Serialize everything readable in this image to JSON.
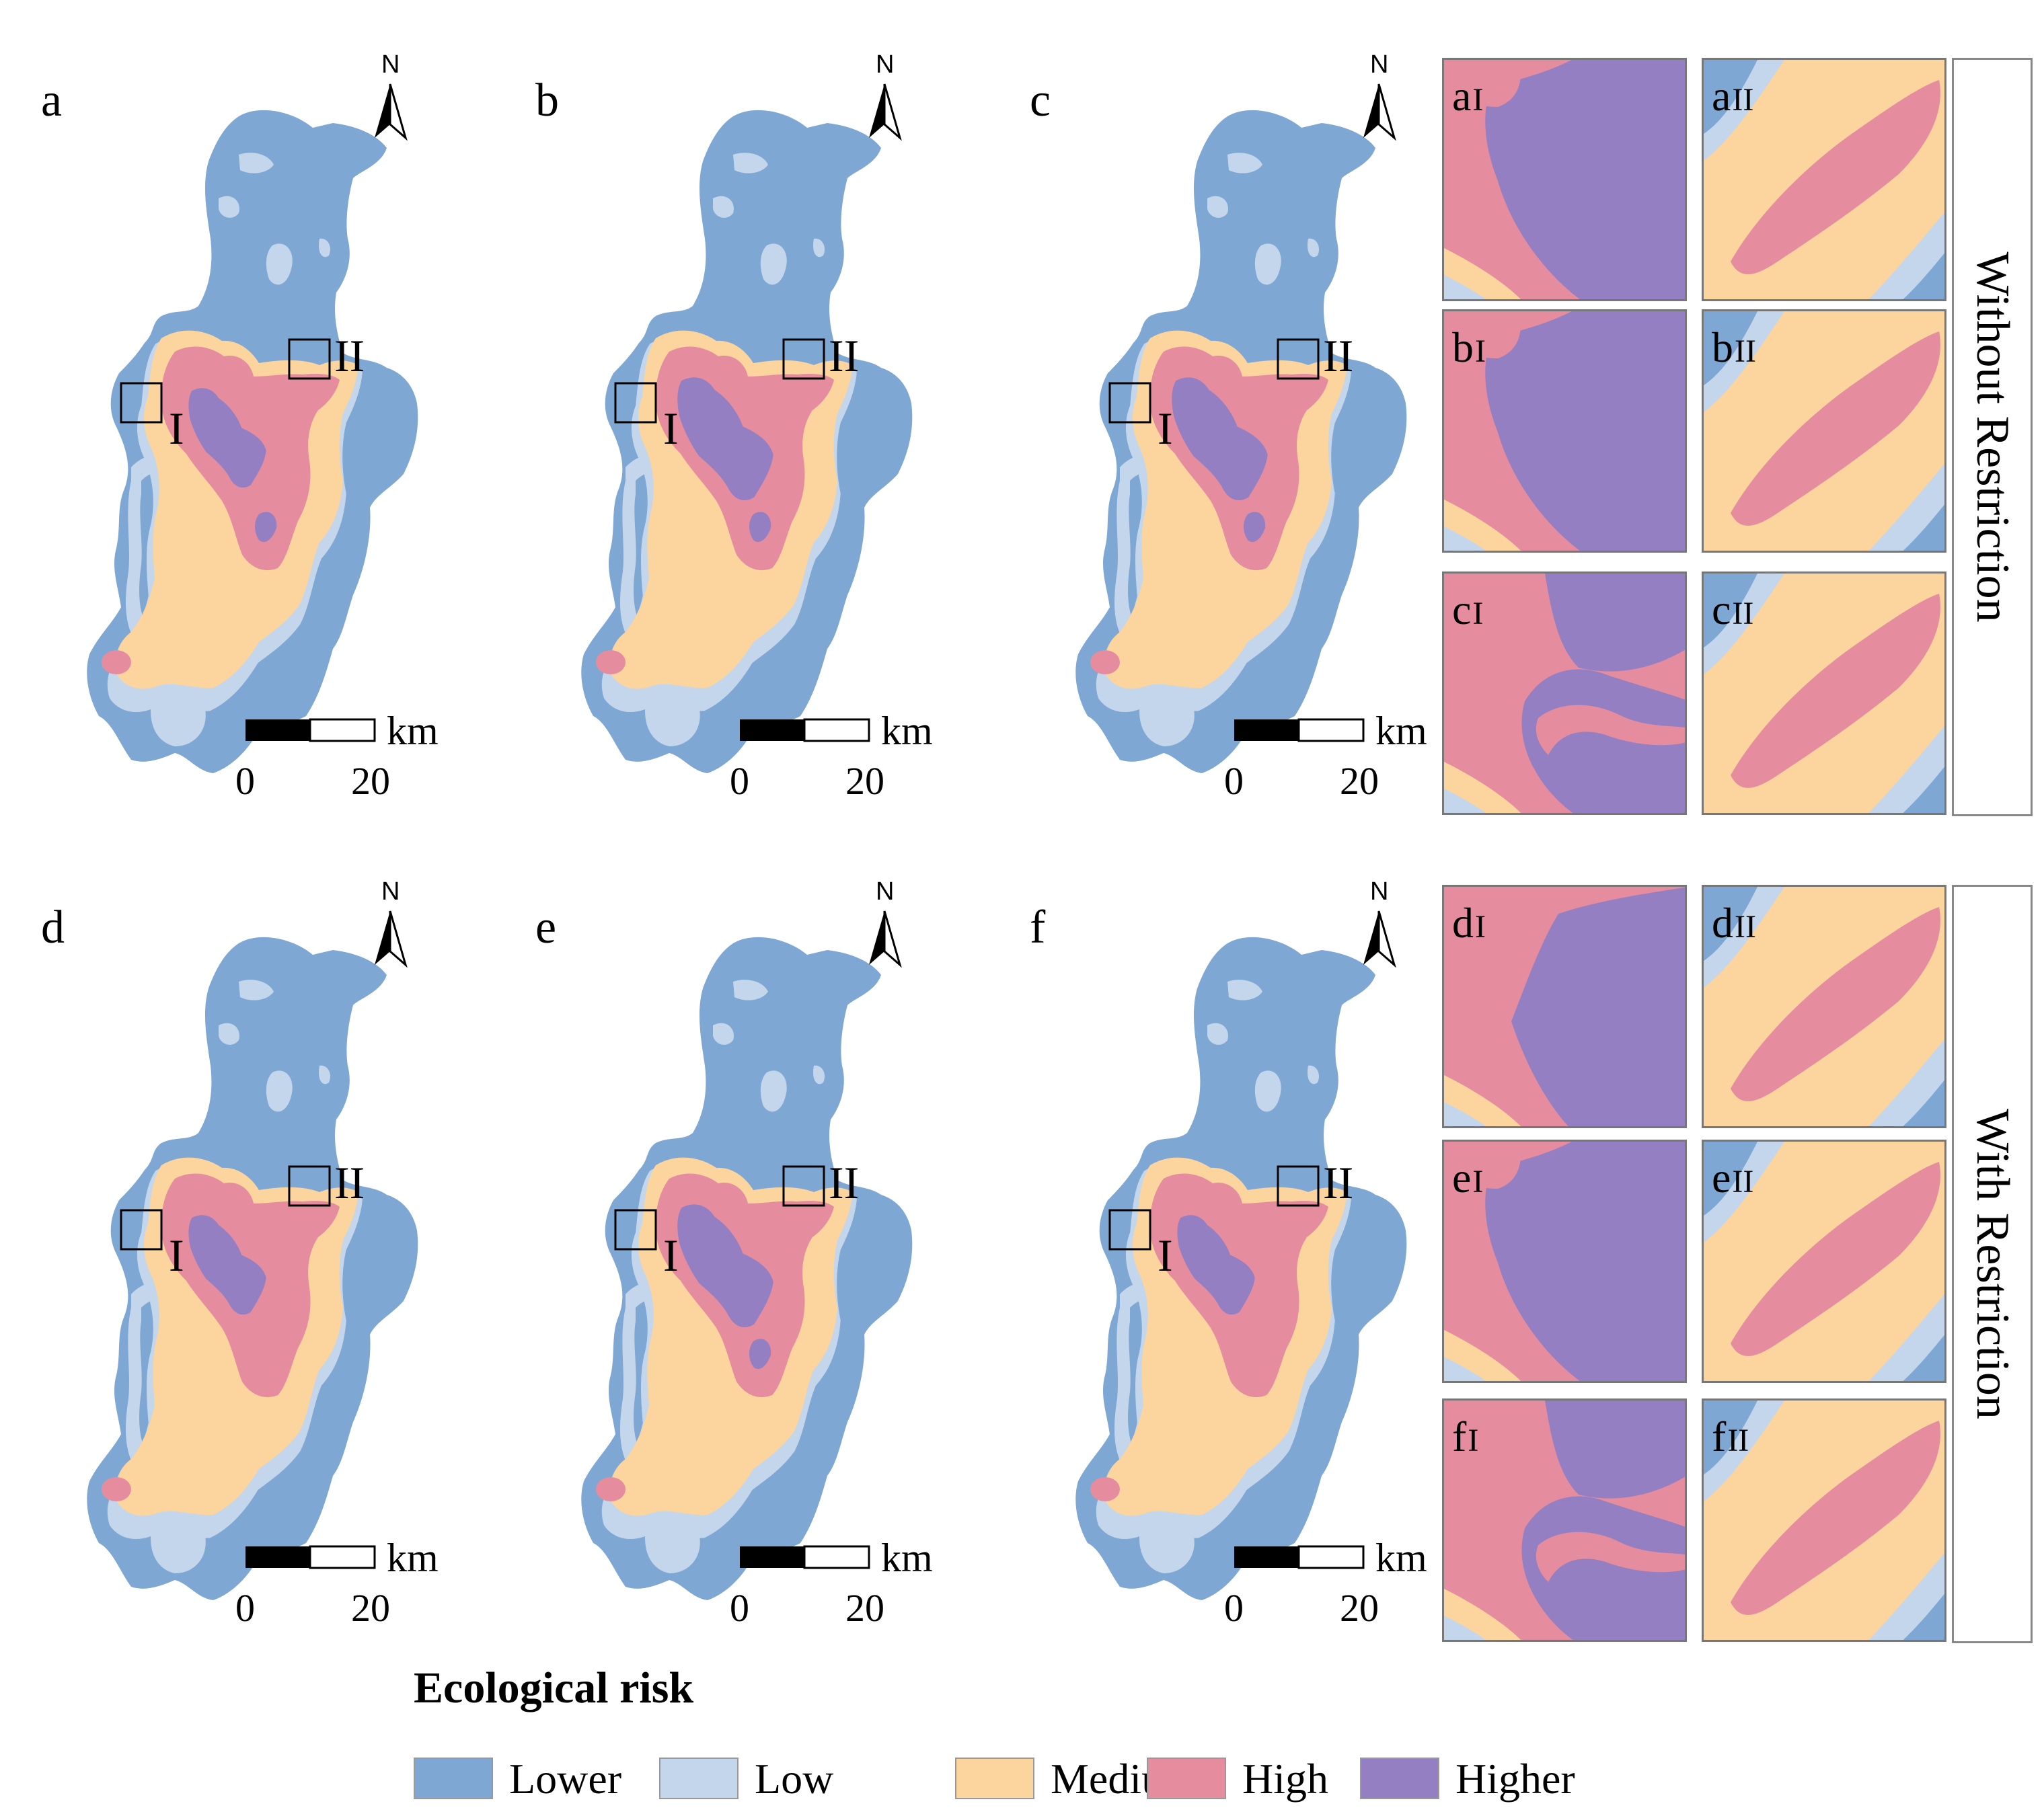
{
  "colors": {
    "lower": "#7fa7d3",
    "low": "#c4d6ec",
    "medium": "#fbd49e",
    "high": "#e58d9e",
    "higher": "#947fc2"
  },
  "north_label": "N",
  "north_icon": "north-arrow-icon",
  "scale": {
    "unit": "km",
    "ticks": [
      "0",
      "20"
    ]
  },
  "box_labels": {
    "one": "I",
    "two": "II"
  },
  "panels": [
    {
      "id": "a",
      "label": "a",
      "restriction": "without"
    },
    {
      "id": "b",
      "label": "b",
      "restriction": "without"
    },
    {
      "id": "c",
      "label": "c",
      "restriction": "without"
    },
    {
      "id": "d",
      "label": "d",
      "restriction": "with"
    },
    {
      "id": "e",
      "label": "e",
      "restriction": "with"
    },
    {
      "id": "f",
      "label": "f",
      "restriction": "with"
    }
  ],
  "zooms": [
    {
      "letter": "a",
      "roman": "I"
    },
    {
      "letter": "a",
      "roman": "II"
    },
    {
      "letter": "b",
      "roman": "I"
    },
    {
      "letter": "b",
      "roman": "II"
    },
    {
      "letter": "c",
      "roman": "I"
    },
    {
      "letter": "c",
      "roman": "II"
    },
    {
      "letter": "d",
      "roman": "I"
    },
    {
      "letter": "d",
      "roman": "II"
    },
    {
      "letter": "e",
      "roman": "I"
    },
    {
      "letter": "e",
      "roman": "II"
    },
    {
      "letter": "f",
      "roman": "I"
    },
    {
      "letter": "f",
      "roman": "II"
    }
  ],
  "side_labels": {
    "top": "Without Restriction",
    "bottom": "With Restriction"
  },
  "legend": {
    "title": "Ecological risk",
    "items": [
      {
        "key": "lower",
        "label": "Lower"
      },
      {
        "key": "low",
        "label": "Low"
      },
      {
        "key": "medium",
        "label": "Medium"
      },
      {
        "key": "high",
        "label": "High"
      },
      {
        "key": "higher",
        "label": "Higher"
      }
    ]
  }
}
